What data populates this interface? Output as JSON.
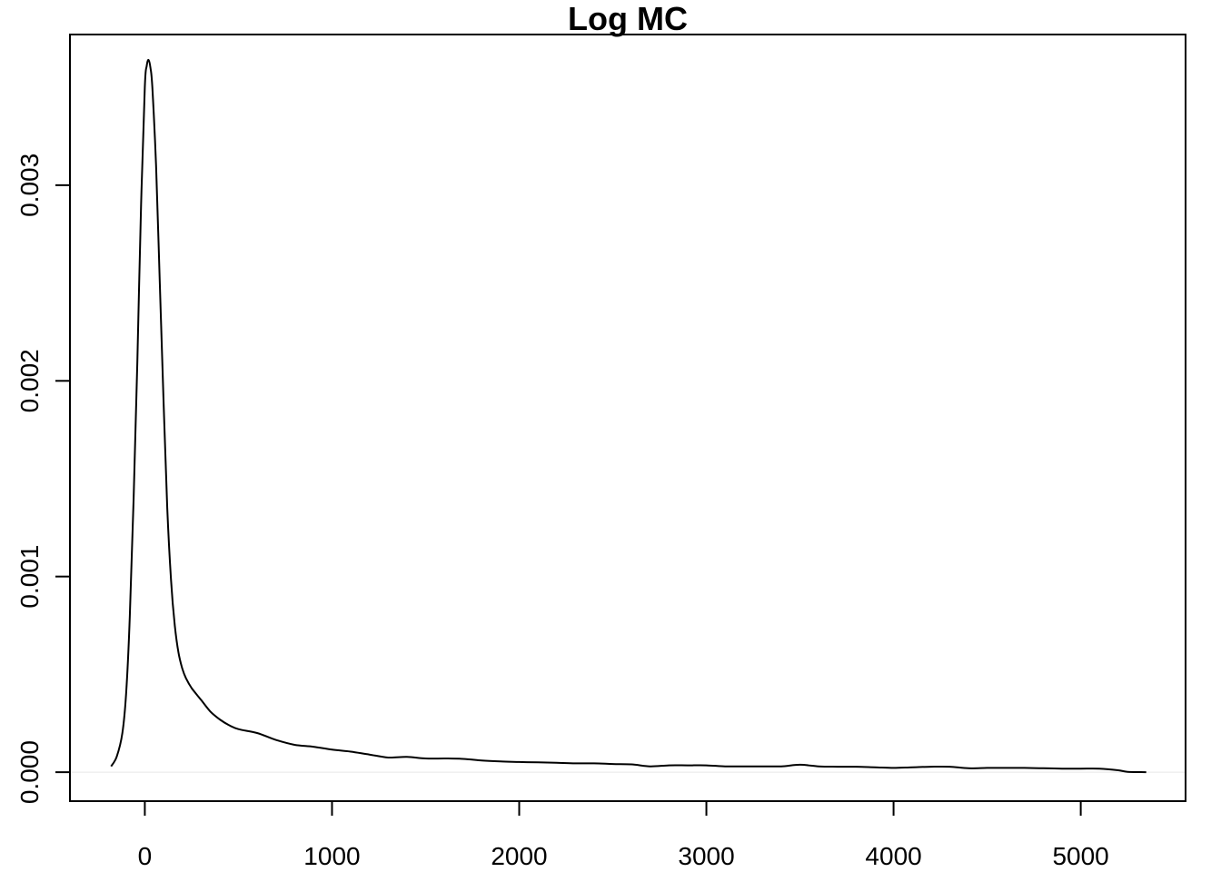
{
  "chart_data": {
    "type": "line",
    "title": "Log MC",
    "xlabel": "",
    "ylabel": "",
    "xlim": [
      -400,
      5560
    ],
    "ylim": [
      -0.000148,
      0.00377
    ],
    "x_ticks": [
      0,
      1000,
      2000,
      3000,
      4000,
      5000
    ],
    "x_tick_labels": [
      "0",
      "1000",
      "2000",
      "3000",
      "4000",
      "5000"
    ],
    "y_ticks": [
      0.0,
      0.001,
      0.002,
      0.003
    ],
    "y_tick_labels": [
      "0.000",
      "0.001",
      "0.002",
      "0.003"
    ],
    "grid": false,
    "baseline": 0,
    "line_color": "#000000",
    "baseline_color": "#e6e6e6",
    "series": [
      {
        "x": [
          -180,
          -150,
          -120,
          -100,
          -80,
          -60,
          -40,
          -20,
          0,
          10,
          20,
          30,
          40,
          60,
          80,
          100,
          120,
          140,
          160,
          180,
          200,
          220,
          250,
          300,
          350,
          400,
          450,
          500,
          600,
          700,
          800,
          900,
          1000,
          1100,
          1200,
          1300,
          1400,
          1500,
          1600,
          1700,
          1800,
          1900,
          2000,
          2100,
          2200,
          2300,
          2400,
          2500,
          2600,
          2700,
          2800,
          2900,
          3000,
          3100,
          3200,
          3300,
          3400,
          3500,
          3600,
          3700,
          3800,
          3900,
          4000,
          4100,
          4200,
          4300,
          4400,
          4500,
          4600,
          4700,
          4800,
          4900,
          5000,
          5100,
          5200,
          5250,
          5350
        ],
        "y": [
          3e-05,
          8e-05,
          0.0002,
          0.0004,
          0.0008,
          0.0014,
          0.0021,
          0.0029,
          0.0035,
          0.00361,
          0.00364,
          0.0036,
          0.0035,
          0.0031,
          0.0025,
          0.0019,
          0.00135,
          0.00098,
          0.00075,
          0.00061,
          0.00053,
          0.00048,
          0.00043,
          0.00037,
          0.00031,
          0.00027,
          0.00024,
          0.00022,
          0.0002,
          0.000165,
          0.00014,
          0.00013,
          0.000115,
          0.000105,
          9e-05,
          7.5e-05,
          7.8e-05,
          7e-05,
          7e-05,
          6.8e-05,
          6e-05,
          5.5e-05,
          5.2e-05,
          5e-05,
          4.8e-05,
          4.5e-05,
          4.5e-05,
          4.2e-05,
          4e-05,
          3e-05,
          3.5e-05,
          3.5e-05,
          3.5e-05,
          3e-05,
          3e-05,
          3e-05,
          3e-05,
          3.8e-05,
          3e-05,
          2.8e-05,
          2.8e-05,
          2.5e-05,
          2.2e-05,
          2.5e-05,
          2.8e-05,
          2.8e-05,
          2e-05,
          2.2e-05,
          2.2e-05,
          2.2e-05,
          2e-05,
          1.8e-05,
          1.8e-05,
          1.8e-05,
          1e-05,
          2e-06,
          0.0
        ]
      }
    ]
  }
}
